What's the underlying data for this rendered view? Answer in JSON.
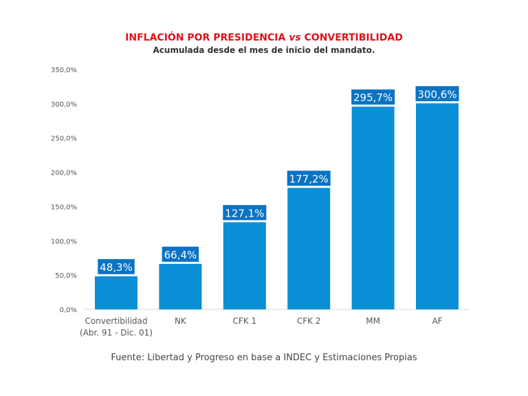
{
  "chart_data": {
    "type": "bar",
    "title_parts": [
      "INFLACIÓN POR PRESIDENCIA ",
      "vs",
      " CONVERTIBILIDAD"
    ],
    "subtitle": "Acumulada desde el mes de inicio del mandato.",
    "categories": [
      [
        "Convertibilidad",
        "(Abr. 91 - Dic. 01)"
      ],
      [
        "NK"
      ],
      [
        "CFK 1"
      ],
      [
        "CFK 2"
      ],
      [
        "MM"
      ],
      [
        "AF"
      ]
    ],
    "values": [
      48.3,
      66.4,
      127.1,
      177.2,
      295.7,
      300.6
    ],
    "data_labels": [
      "48,3%",
      "66,4%",
      "127,1%",
      "177,2%",
      "295,7%",
      "300,6%"
    ],
    "yticks": [
      0,
      50,
      100,
      150,
      200,
      250,
      300,
      350
    ],
    "ytick_labels": [
      "0,0%",
      "50,0%",
      "100,0%",
      "150,0%",
      "200,0%",
      "250,0%",
      "300,0%",
      "350,0%"
    ],
    "ylim": [
      0,
      350
    ],
    "grid": false,
    "bar_color": "#0a8fd6",
    "label_box_color": "#0a73c4",
    "title_color": "#e0121b"
  },
  "source": "Fuente: Libertad y Progreso en base a INDEC y Estimaciones Propias"
}
